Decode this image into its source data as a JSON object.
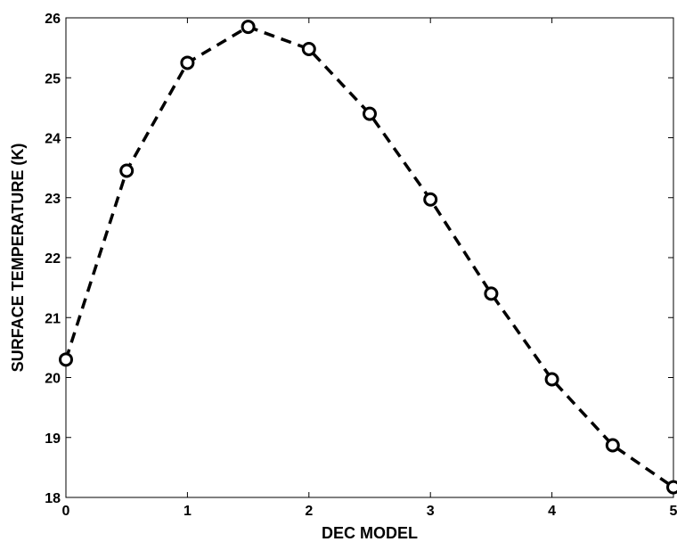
{
  "chart_data": {
    "type": "line",
    "title": "",
    "xlabel": "DEC MODEL",
    "ylabel": "SURFACE TEMPERATURE (K)",
    "xlim": [
      0,
      5
    ],
    "ylim": [
      18,
      26
    ],
    "xticks": [
      0,
      1,
      2,
      3,
      4,
      5
    ],
    "yticks": [
      18,
      19,
      20,
      21,
      22,
      23,
      24,
      25,
      26
    ],
    "grid": false,
    "line_style": "dashed",
    "marker": "circle",
    "color": "#000000",
    "series": [
      {
        "x": [
          0,
          0.5,
          1,
          1.5,
          2,
          2.5,
          3,
          3.5,
          4,
          4.5,
          5
        ],
        "values": [
          20.3,
          23.45,
          25.25,
          25.85,
          25.48,
          24.4,
          22.97,
          21.4,
          19.97,
          18.87,
          18.17
        ]
      }
    ]
  }
}
